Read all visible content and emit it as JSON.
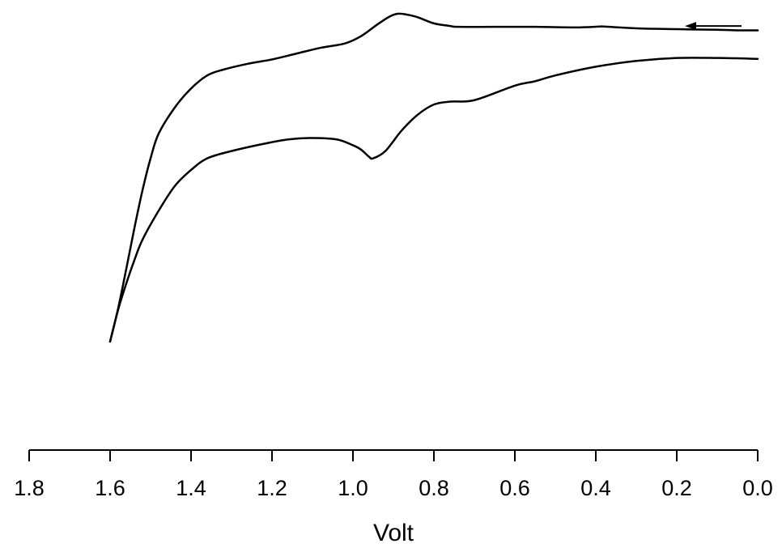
{
  "chart_data": {
    "type": "line",
    "title": "",
    "xlabel": "Volt",
    "ylabel": "",
    "x_reversed": true,
    "xlim": [
      1.8,
      0.0
    ],
    "xticks": [
      "1.8",
      "1.6",
      "1.4",
      "1.2",
      "1.0",
      "0.8",
      "0.6",
      "0.4",
      "0.2",
      "0.0"
    ],
    "ylim": [
      -1.0,
      0.2
    ],
    "y_axis_shown": false,
    "grid": false,
    "annotations": [
      {
        "type": "arrow",
        "direction": "left",
        "points_from_x": 0.04,
        "points_to_x": 0.18,
        "y": 0.115
      }
    ],
    "series": [
      {
        "x": [
          0.0,
          0.05,
          0.1,
          0.2,
          0.3,
          0.38,
          0.39,
          0.45,
          0.55,
          0.65,
          0.74,
          0.76,
          0.8,
          0.84,
          0.87,
          0.89,
          0.91,
          0.94,
          0.98,
          1.02,
          1.08,
          1.14,
          1.2,
          1.26,
          1.32,
          1.36,
          1.4,
          1.44,
          1.48,
          1.5,
          1.52,
          1.54,
          1.56,
          1.58,
          1.6
        ],
        "y": [
          0.1,
          0.1,
          0.102,
          0.104,
          0.107,
          0.113,
          0.113,
          0.11,
          0.112,
          0.112,
          0.112,
          0.115,
          0.124,
          0.145,
          0.155,
          0.157,
          0.147,
          0.12,
          0.08,
          0.055,
          0.04,
          0.02,
          0.0,
          -0.015,
          -0.035,
          -0.055,
          -0.1,
          -0.165,
          -0.255,
          -0.34,
          -0.45,
          -0.58,
          -0.72,
          -0.855,
          -0.97
        ]
      },
      {
        "x": [
          0.0,
          0.1,
          0.2,
          0.3,
          0.4,
          0.5,
          0.55,
          0.6,
          0.7,
          0.76,
          0.8,
          0.84,
          0.88,
          0.92,
          0.95,
          0.96,
          0.98,
          1.0,
          1.04,
          1.1,
          1.16,
          1.22,
          1.3,
          1.36,
          1.4,
          1.44,
          1.48,
          1.52,
          1.54,
          1.56,
          1.58,
          1.6
        ],
        "y": [
          0.002,
          0.005,
          0.005,
          -0.005,
          -0.025,
          -0.055,
          -0.075,
          -0.09,
          -0.14,
          -0.145,
          -0.155,
          -0.19,
          -0.245,
          -0.315,
          -0.34,
          -0.335,
          -0.31,
          -0.295,
          -0.275,
          -0.27,
          -0.275,
          -0.29,
          -0.315,
          -0.34,
          -0.38,
          -0.435,
          -0.52,
          -0.62,
          -0.69,
          -0.77,
          -0.86,
          -0.97
        ]
      }
    ]
  }
}
